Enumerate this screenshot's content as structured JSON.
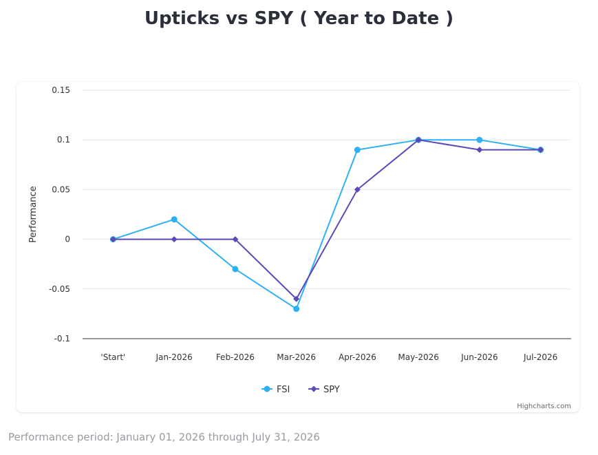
{
  "page": {
    "title": "Upticks vs SPY ( Year to Date )",
    "footer": "Performance period: January 01, 2026 through July 31, 2026",
    "credits": "Highcharts.com"
  },
  "colors": {
    "fsi": "#2fb0f4",
    "spy": "#5b49b8",
    "grid": "#e6e6e6",
    "axis": "#333333"
  },
  "chart_data": {
    "type": "line",
    "title": "",
    "xlabel": "",
    "ylabel": "Performance",
    "categories": [
      "'Start'",
      "Jan-2026",
      "Feb-2026",
      "Mar-2026",
      "Apr-2026",
      "May-2026",
      "Jun-2026",
      "Jul-2026"
    ],
    "ylim": [
      -0.1,
      0.15
    ],
    "yticks": [
      -0.1,
      -0.05,
      0,
      0.05,
      0.1,
      0.15
    ],
    "ytick_labels": [
      "-0.1",
      "-0.05",
      "0",
      "0.05",
      "0.1",
      "0.15"
    ],
    "grid": true,
    "legend_position": "bottom-center",
    "series": [
      {
        "name": "FSI",
        "marker": "circle",
        "values": [
          0,
          0.02,
          -0.03,
          -0.07,
          0.09,
          0.1,
          0.1,
          0.09
        ]
      },
      {
        "name": "SPY",
        "marker": "diamond",
        "values": [
          0,
          0,
          0,
          -0.06,
          0.05,
          0.1,
          0.09,
          0.09
        ]
      }
    ]
  }
}
